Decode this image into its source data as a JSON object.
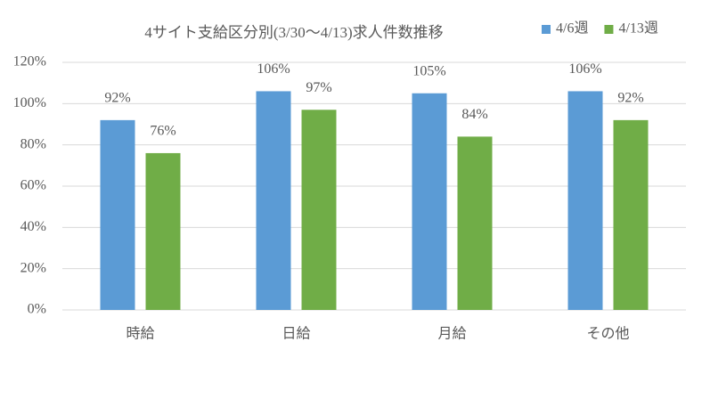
{
  "chart_data": {
    "type": "bar",
    "title": "4サイト支給区分別(3/30～4/13)求人件数推移",
    "categories": [
      "時給",
      "日給",
      "月給",
      "その他"
    ],
    "series": [
      {
        "name": "4/6週",
        "color": "#5b9bd5",
        "values": [
          92,
          106,
          105,
          106
        ],
        "value_labels": [
          "92%",
          "106%",
          "105%",
          "106%"
        ]
      },
      {
        "name": "4/13週",
        "color": "#70ad47",
        "values": [
          76,
          97,
          84,
          92
        ],
        "value_labels": [
          "76%",
          "97%",
          "84%",
          "92%"
        ]
      }
    ],
    "ylim": [
      0,
      120
    ],
    "yticks": [
      {
        "value": 0,
        "label": "0%"
      },
      {
        "value": 20,
        "label": "20%"
      },
      {
        "value": 40,
        "label": "40%"
      },
      {
        "value": 60,
        "label": "60%"
      },
      {
        "value": 80,
        "label": "80%"
      },
      {
        "value": 100,
        "label": "100%"
      },
      {
        "value": 120,
        "label": "120%"
      }
    ],
    "grid": true,
    "legend": "top-right"
  }
}
